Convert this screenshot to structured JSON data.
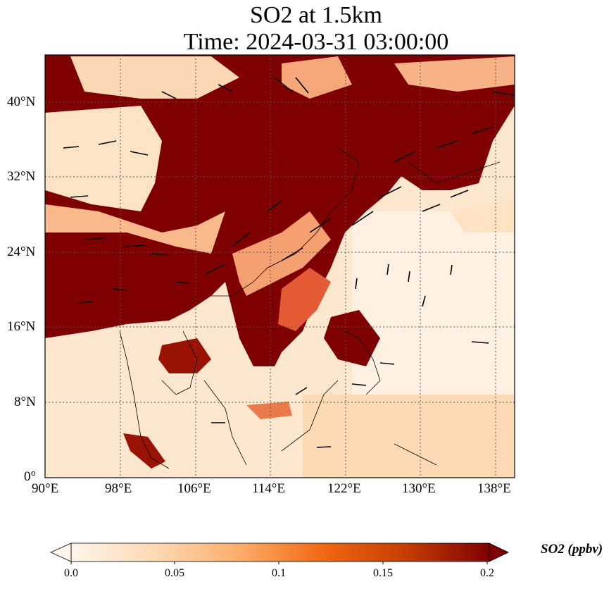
{
  "title": {
    "line1": "SO2 at 1.5km",
    "line2": "Time: 2024-03-31 03:00:00"
  },
  "map": {
    "lon_range": [
      90,
      140
    ],
    "lat_range": [
      0,
      45
    ],
    "lon_ticks": [
      "90°E",
      "98°E",
      "106°E",
      "114°E",
      "122°E",
      "130°E",
      "138°E"
    ],
    "lat_ticks": [
      "0°",
      "8°N",
      "16°N",
      "24°N",
      "32°N",
      "40°N"
    ],
    "gridlines": true,
    "coastlines": true,
    "wind_vectors": true
  },
  "colorbar": {
    "label": "SO2 (ppbv)",
    "ticks": [
      "0.0",
      "0.05",
      "0.1",
      "0.15",
      "0.2"
    ],
    "colormap": [
      "#fff5eb",
      "#fdd9b4",
      "#fda762",
      "#f16913",
      "#c63d02",
      "#7f0000"
    ],
    "extend": "both"
  },
  "colors": {
    "max": "#7f0000",
    "high": "#b02008",
    "mid": "#e8663a",
    "low": "#fcc89b",
    "lowest": "#fff1e0"
  }
}
